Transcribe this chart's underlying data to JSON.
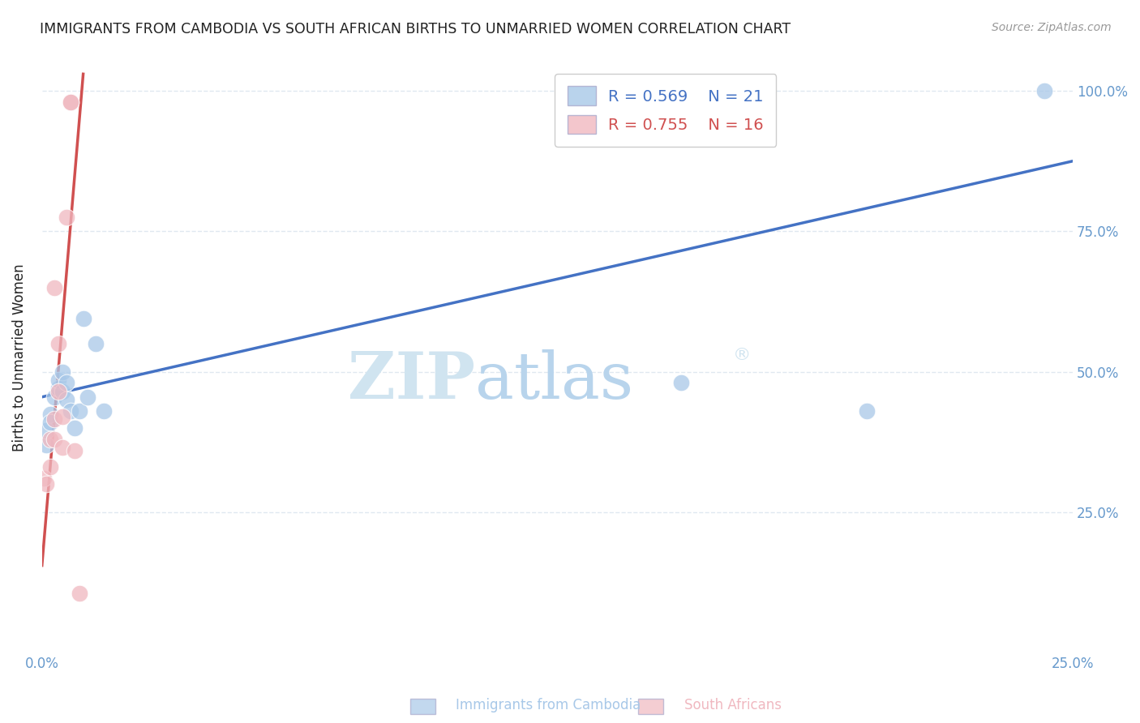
{
  "title": "IMMIGRANTS FROM CAMBODIA VS SOUTH AFRICAN BIRTHS TO UNMARRIED WOMEN CORRELATION CHART",
  "source": "Source: ZipAtlas.com",
  "ylabel": "Births to Unmarried Women",
  "xlabel_label1": "Immigrants from Cambodia",
  "xlabel_label2": "South Africans",
  "legend_blue_r": "R = 0.569",
  "legend_blue_n": "N = 21",
  "legend_pink_r": "R = 0.755",
  "legend_pink_n": "N = 16",
  "watermark_zip": "ZIP",
  "watermark_atlas": "atlas",
  "blue_scatter_x": [
    0.001,
    0.001,
    0.002,
    0.002,
    0.003,
    0.004,
    0.004,
    0.005,
    0.005,
    0.006,
    0.006,
    0.007,
    0.008,
    0.009,
    0.01,
    0.011,
    0.013,
    0.015,
    0.155,
    0.2,
    0.243
  ],
  "blue_scatter_y": [
    0.37,
    0.395,
    0.425,
    0.41,
    0.455,
    0.47,
    0.485,
    0.5,
    0.465,
    0.45,
    0.48,
    0.43,
    0.4,
    0.43,
    0.595,
    0.455,
    0.55,
    0.43,
    0.48,
    0.43,
    1.0
  ],
  "pink_scatter_x": [
    0.0005,
    0.001,
    0.002,
    0.002,
    0.003,
    0.003,
    0.003,
    0.004,
    0.004,
    0.005,
    0.005,
    0.006,
    0.007,
    0.007,
    0.008,
    0.009
  ],
  "pink_scatter_y": [
    0.31,
    0.3,
    0.33,
    0.38,
    0.38,
    0.415,
    0.65,
    0.465,
    0.55,
    0.42,
    0.365,
    0.775,
    0.98,
    0.98,
    0.36,
    0.105
  ],
  "blue_line_x": [
    0.0,
    0.25
  ],
  "blue_line_y": [
    0.455,
    0.875
  ],
  "pink_line_x": [
    0.0,
    0.01
  ],
  "pink_line_y": [
    0.155,
    1.03
  ],
  "xlim": [
    0.0,
    0.25
  ],
  "ylim": [
    0.0,
    1.05
  ],
  "xticks": [
    0.0,
    0.05,
    0.1,
    0.15,
    0.2,
    0.25
  ],
  "xtick_labels_show": [
    "0.0%",
    "",
    "",
    "",
    "",
    "25.0%"
  ],
  "yticks": [
    0.25,
    0.5,
    0.75,
    1.0
  ],
  "ytick_labels": [
    "25.0%",
    "50.0%",
    "75.0%",
    "100.0%"
  ],
  "blue_color": "#a8c8e8",
  "pink_color": "#f0b8c0",
  "blue_line_color": "#4472c4",
  "pink_line_color": "#d05050",
  "title_color": "#222222",
  "axis_color": "#6699cc",
  "grid_color": "#e0e8f0",
  "watermark_zip_color": "#d0e4f0",
  "watermark_atlas_color": "#b8d4ec"
}
